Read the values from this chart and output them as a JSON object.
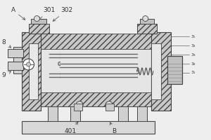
{
  "bg_color": "#eeeeee",
  "line_color": "#444444",
  "fig_width": 3.0,
  "fig_height": 2.0,
  "dpi": 100,
  "label_fontsize": 6.5
}
